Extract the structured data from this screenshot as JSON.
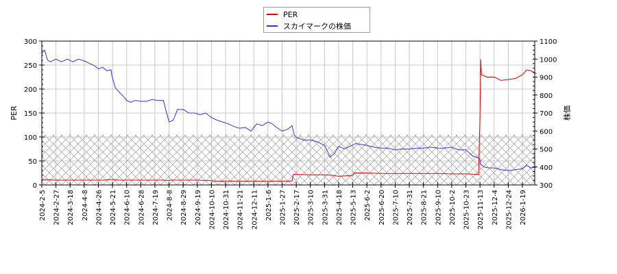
{
  "chart_data": {
    "type": "line",
    "title": "",
    "legend": {
      "position": "top-center",
      "entries": [
        {
          "name": "PER",
          "color": "#e00000"
        },
        {
          "name": "スカイマークの株価",
          "color": "#3333dd"
        }
      ]
    },
    "left_axis": {
      "label": "PER",
      "range": [
        0,
        300
      ],
      "ticks": [
        0,
        50,
        100,
        150,
        200,
        250,
        300
      ]
    },
    "right_axis": {
      "label": "株価",
      "range": [
        300,
        1100
      ],
      "ticks": [
        300,
        400,
        500,
        600,
        700,
        800,
        900,
        1000,
        1100
      ]
    },
    "x_tick_labels": [
      "2024-2-5",
      "2024-2-27",
      "2024-3-18",
      "2024-4-8",
      "2024-4-26",
      "2024-5-21",
      "2024-6-10",
      "2024-6-28",
      "2024-7-19",
      "2024-8-8",
      "2024-8-29",
      "2024-9-19",
      "2024-10-10",
      "2024-10-31",
      "2024-11-21",
      "2024-12-11",
      "2025-1-6",
      "2025-1-27",
      "2025-2-17",
      "2025-3-10",
      "2025-3-31",
      "2025-4-18",
      "2025-5-13",
      "2025-6-2",
      "2025-6-20",
      "2025-7-10",
      "2025-7-31",
      "2025-8-21",
      "2025-9-10",
      "2025-10-2",
      "2025-10-23",
      "2025-11-13",
      "2025-12-4",
      "2025-12-24",
      "2026-1-19"
    ],
    "grid": true,
    "hatched_region": {
      "axis": "left",
      "from": 0,
      "to": 105
    },
    "series": [
      {
        "name": "PER",
        "axis": "left",
        "color": "#e00000",
        "x_index": [
          0,
          0.3,
          1,
          2,
          3,
          4,
          4.5,
          4.6,
          5,
          5.5,
          6,
          7,
          8,
          8.6,
          9,
          9.1,
          10,
          11,
          12,
          12.2,
          13,
          14,
          15,
          16,
          17,
          17.7,
          17.8,
          18,
          19,
          20,
          20.6,
          21,
          21.5,
          22,
          22.1,
          23,
          24,
          25,
          26,
          27,
          28,
          29,
          30,
          30.9,
          31.0,
          31.05,
          31.1,
          31.5,
          32,
          32.5,
          33,
          33.5,
          34,
          34.3,
          34.6,
          35
        ],
        "values": [
          10,
          11,
          10,
          10,
          10,
          10,
          10,
          11,
          11,
          10,
          10,
          10,
          10,
          10,
          9,
          10,
          10,
          10,
          9,
          8,
          8,
          8,
          8,
          8,
          8,
          8,
          22,
          22,
          21,
          21,
          20,
          18,
          19,
          20,
          25,
          25,
          24,
          24,
          24,
          24,
          24,
          23,
          23,
          22,
          140,
          262,
          230,
          225,
          225,
          218,
          220,
          222,
          230,
          240,
          238,
          232
        ]
      },
      {
        "name": "スカイマークの株価",
        "axis": "right",
        "color": "#3333dd",
        "x_index": [
          0,
          0.2,
          0.4,
          0.6,
          1,
          1.4,
          1.8,
          2.2,
          2.6,
          3,
          3.4,
          3.8,
          4,
          4.3,
          4.6,
          4.9,
          4.95,
          5.2,
          5.5,
          5.8,
          6,
          6.3,
          6.6,
          7,
          7.4,
          7.8,
          8.2,
          8.6,
          8.9,
          9.0,
          9.3,
          9.6,
          10,
          10.4,
          10.8,
          11.2,
          11.6,
          12,
          12.4,
          12.8,
          13.2,
          13.6,
          14,
          14.4,
          14.8,
          15.2,
          15.6,
          16,
          16.3,
          16.6,
          17,
          17.4,
          17.7,
          17.85,
          18,
          18.5,
          19,
          19.5,
          20,
          20.4,
          20.7,
          21,
          21.4,
          21.8,
          22.2,
          22.6,
          23,
          23.5,
          24,
          24.5,
          25,
          25.5,
          26,
          26.5,
          27,
          27.5,
          28,
          28.5,
          29,
          29.5,
          30,
          30.5,
          30.9,
          31.0,
          31.05,
          31.3,
          31.6,
          32,
          32.5,
          33,
          33.5,
          34,
          34.3,
          34.6,
          35
        ],
        "values": [
          1030,
          1050,
          995,
          985,
          1000,
          985,
          1000,
          985,
          1000,
          990,
          975,
          960,
          945,
          955,
          935,
          940,
          910,
          840,
          815,
          790,
          770,
          760,
          770,
          765,
          765,
          775,
          770,
          770,
          680,
          650,
          660,
          720,
          720,
          700,
          700,
          690,
          700,
          675,
          660,
          650,
          640,
          625,
          615,
          620,
          600,
          640,
          630,
          650,
          640,
          620,
          600,
          610,
          630,
          580,
          565,
          550,
          550,
          540,
          520,
          455,
          475,
          515,
          500,
          515,
          530,
          525,
          520,
          510,
          505,
          505,
          495,
          500,
          500,
          505,
          505,
          510,
          505,
          505,
          510,
          495,
          495,
          460,
          450,
          440,
          415,
          400,
          395,
          395,
          385,
          380,
          385,
          390,
          410,
          395,
          400
        ]
      }
    ]
  }
}
